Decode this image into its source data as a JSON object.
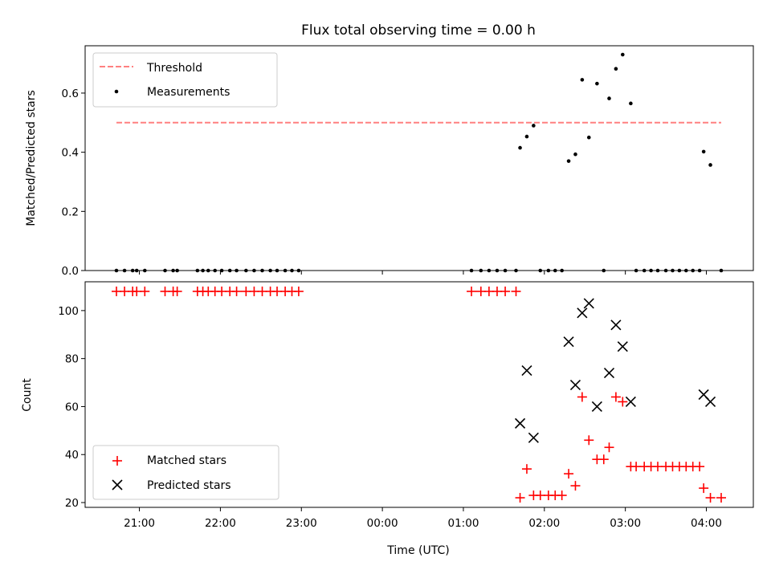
{
  "chart_data": [
    {
      "type": "scatter",
      "title": "Flux total observing time = 0.00 h",
      "ylabel": "Matched/Predicted stars",
      "xlabel": "",
      "ylim": [
        0,
        0.76
      ],
      "yticks": [
        0.0,
        0.2,
        0.4,
        0.6
      ],
      "ytick_labels": [
        "0.0",
        "0.2",
        "0.4",
        "0.6"
      ],
      "xlim_hours": [
        20.33,
        28.58
      ],
      "legend_position": "upper left",
      "threshold": {
        "name": "Threshold",
        "value": 0.5,
        "x_range": [
          "20:43",
          "04:11"
        ],
        "color": "#ff8080",
        "style": "dashed"
      },
      "series": [
        {
          "name": "Measurements",
          "color": "#000000",
          "marker": "dot",
          "points": [
            [
              "20:43",
              0.0
            ],
            [
              "20:49",
              0.0
            ],
            [
              "20:55",
              0.0
            ],
            [
              "20:58",
              0.0
            ],
            [
              "21:04",
              0.0
            ],
            [
              "21:19",
              0.0
            ],
            [
              "21:25",
              0.0
            ],
            [
              "21:28",
              0.0
            ],
            [
              "21:43",
              0.0
            ],
            [
              "21:47",
              0.0
            ],
            [
              "21:51",
              0.0
            ],
            [
              "21:56",
              0.0
            ],
            [
              "22:01",
              0.0
            ],
            [
              "22:07",
              0.0
            ],
            [
              "22:12",
              0.0
            ],
            [
              "22:19",
              0.0
            ],
            [
              "22:25",
              0.0
            ],
            [
              "22:31",
              0.0
            ],
            [
              "22:37",
              0.0
            ],
            [
              "22:42",
              0.0
            ],
            [
              "22:48",
              0.0
            ],
            [
              "22:53",
              0.0
            ],
            [
              "22:58",
              0.0
            ],
            [
              "01:06",
              0.0
            ],
            [
              "01:13",
              0.0
            ],
            [
              "01:19",
              0.0
            ],
            [
              "01:25",
              0.0
            ],
            [
              "01:31",
              0.0
            ],
            [
              "01:39",
              0.0
            ],
            [
              "01:42",
              0.415
            ],
            [
              "01:47",
              0.453
            ],
            [
              "01:52",
              0.49
            ],
            [
              "01:57",
              0.0
            ],
            [
              "02:03",
              0.0
            ],
            [
              "02:08",
              0.0
            ],
            [
              "02:13",
              0.0
            ],
            [
              "02:18",
              0.37
            ],
            [
              "02:23",
              0.393
            ],
            [
              "02:28",
              0.645
            ],
            [
              "02:33",
              0.45
            ],
            [
              "02:39",
              0.632
            ],
            [
              "02:44",
              0.0
            ],
            [
              "02:48",
              0.582
            ],
            [
              "02:53",
              0.682
            ],
            [
              "02:58",
              0.73
            ],
            [
              "03:04",
              0.565
            ],
            [
              "03:08",
              0.0
            ],
            [
              "03:14",
              0.0
            ],
            [
              "03:19",
              0.0
            ],
            [
              "03:24",
              0.0
            ],
            [
              "03:30",
              0.0
            ],
            [
              "03:35",
              0.0
            ],
            [
              "03:40",
              0.0
            ],
            [
              "03:45",
              0.0
            ],
            [
              "03:50",
              0.0
            ],
            [
              "03:55",
              0.0
            ],
            [
              "03:58",
              0.402
            ],
            [
              "04:03",
              0.357
            ],
            [
              "04:11",
              0.0
            ]
          ]
        }
      ]
    },
    {
      "type": "scatter",
      "title": "",
      "ylabel": "Count",
      "xlabel": "Time (UTC)",
      "ylim": [
        18,
        112
      ],
      "yticks": [
        20,
        40,
        60,
        80,
        100
      ],
      "ytick_labels": [
        "20",
        "40",
        "60",
        "80",
        "100"
      ],
      "xlim_hours": [
        20.33,
        28.58
      ],
      "xticks_hours": [
        21,
        22,
        23,
        24,
        25,
        26,
        27,
        28
      ],
      "xtick_labels": [
        "21:00",
        "22:00",
        "23:00",
        "00:00",
        "01:00",
        "02:00",
        "03:00",
        "04:00"
      ],
      "legend_position": "lower left",
      "series": [
        {
          "name": "Matched stars",
          "color": "#ff0000",
          "marker": "plus",
          "points": [
            [
              "20:43",
              108
            ],
            [
              "20:49",
              108
            ],
            [
              "20:55",
              108
            ],
            [
              "20:58",
              108
            ],
            [
              "21:04",
              108
            ],
            [
              "21:19",
              108
            ],
            [
              "21:25",
              108
            ],
            [
              "21:28",
              108
            ],
            [
              "21:43",
              108
            ],
            [
              "21:47",
              108
            ],
            [
              "21:51",
              108
            ],
            [
              "21:56",
              108
            ],
            [
              "22:01",
              108
            ],
            [
              "22:07",
              108
            ],
            [
              "22:12",
              108
            ],
            [
              "22:19",
              108
            ],
            [
              "22:25",
              108
            ],
            [
              "22:31",
              108
            ],
            [
              "22:37",
              108
            ],
            [
              "22:42",
              108
            ],
            [
              "22:48",
              108
            ],
            [
              "22:53",
              108
            ],
            [
              "22:58",
              108
            ],
            [
              "01:06",
              108
            ],
            [
              "01:13",
              108
            ],
            [
              "01:19",
              108
            ],
            [
              "01:25",
              108
            ],
            [
              "01:31",
              108
            ],
            [
              "01:39",
              108
            ],
            [
              "01:42",
              22
            ],
            [
              "01:47",
              34
            ],
            [
              "01:52",
              23
            ],
            [
              "01:57",
              23
            ],
            [
              "02:03",
              23
            ],
            [
              "02:08",
              23
            ],
            [
              "02:13",
              23
            ],
            [
              "02:18",
              32
            ],
            [
              "02:23",
              27
            ],
            [
              "02:28",
              64
            ],
            [
              "02:33",
              46
            ],
            [
              "02:39",
              38
            ],
            [
              "02:44",
              38
            ],
            [
              "02:48",
              43
            ],
            [
              "02:53",
              64
            ],
            [
              "02:58",
              62
            ],
            [
              "03:04",
              35
            ],
            [
              "03:08",
              35
            ],
            [
              "03:14",
              35
            ],
            [
              "03:19",
              35
            ],
            [
              "03:24",
              35
            ],
            [
              "03:30",
              35
            ],
            [
              "03:35",
              35
            ],
            [
              "03:40",
              35
            ],
            [
              "03:45",
              35
            ],
            [
              "03:50",
              35
            ],
            [
              "03:55",
              35
            ],
            [
              "03:58",
              26
            ],
            [
              "04:03",
              22
            ],
            [
              "04:11",
              22
            ]
          ]
        },
        {
          "name": "Predicted stars",
          "color": "#000000",
          "marker": "x",
          "points": [
            [
              "01:42",
              53
            ],
            [
              "01:47",
              75
            ],
            [
              "01:52",
              47
            ],
            [
              "02:18",
              87
            ],
            [
              "02:23",
              69
            ],
            [
              "02:28",
              99
            ],
            [
              "02:33",
              103
            ],
            [
              "02:39",
              60
            ],
            [
              "02:48",
              74
            ],
            [
              "02:53",
              94
            ],
            [
              "02:58",
              85
            ],
            [
              "03:04",
              62
            ],
            [
              "03:58",
              65
            ],
            [
              "04:03",
              62
            ]
          ]
        }
      ]
    }
  ]
}
